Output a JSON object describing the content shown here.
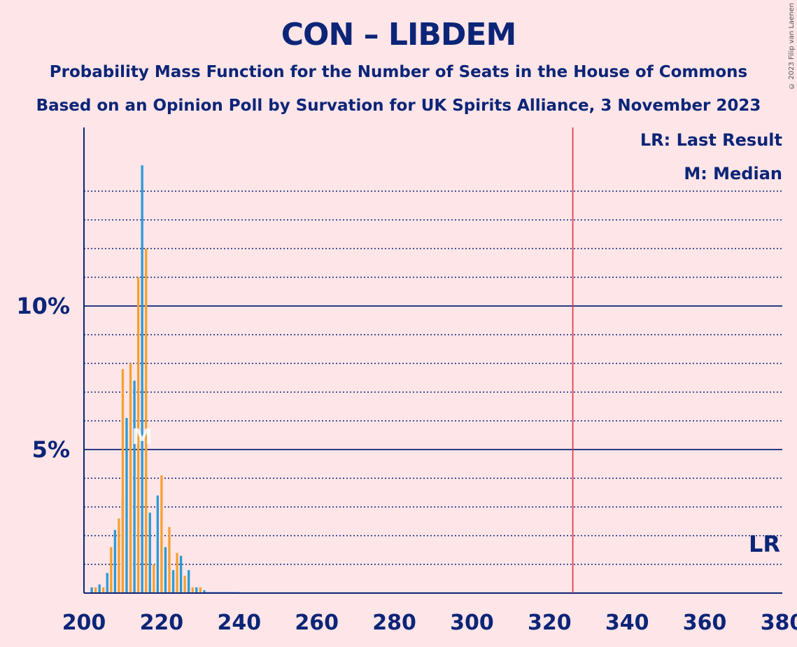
{
  "chart_data": {
    "type": "bar",
    "title": "CON – LIBDEM",
    "subtitle1": "Probability Mass Function for the Number of Seats in the House of Commons",
    "subtitle2": "Based on an Opinion Poll by Survation for UK Spirits Alliance, 3 November 2023",
    "copyright": "© 2023 Filip van Laenen",
    "legend": {
      "last_result": "LR: Last Result",
      "median": "M: Median",
      "placement": "top-right"
    },
    "markers": {
      "last_result_label": "LR",
      "median_label": "M",
      "median_x": 215,
      "majority_line_x": 326
    },
    "xlim": [
      200,
      380
    ],
    "ylim": [
      0,
      16
    ],
    "x_ticks": [
      200,
      220,
      240,
      260,
      280,
      300,
      320,
      340,
      360,
      380
    ],
    "y_ticks": [
      {
        "value": 5,
        "label": "5%"
      },
      {
        "value": 10,
        "label": "10%"
      }
    ],
    "grid": "dotted every 1%, solid at 5% and 10%",
    "colors": {
      "blue_bar": "#2a9ad6",
      "orange_bar": "#f5a030",
      "axis": "#0c2577",
      "majority_line": "#e0303a",
      "background": "#fde5e8"
    },
    "series": [
      {
        "color": "blue",
        "x": [
          202,
          204,
          206,
          208,
          210,
          211,
          213,
          215,
          217,
          219,
          221,
          223,
          225,
          227,
          229,
          231
        ],
        "values": [
          0.2,
          0.3,
          0.7,
          2.2,
          3.3,
          6.1,
          7.4,
          14.9,
          2.8,
          3.4,
          1.6,
          0.8,
          1.3,
          0.8,
          0.2,
          0.1
        ]
      },
      {
        "color": "orange",
        "x": [
          203,
          205,
          207,
          209,
          210,
          212,
          214,
          216,
          218,
          220,
          222,
          224,
          226,
          228,
          230
        ],
        "values": [
          0.2,
          0.2,
          1.6,
          2.6,
          7.8,
          8.0,
          11.0,
          12.0,
          1.0,
          4.1,
          2.3,
          1.4,
          0.6,
          0.2,
          0.2
        ]
      }
    ]
  }
}
